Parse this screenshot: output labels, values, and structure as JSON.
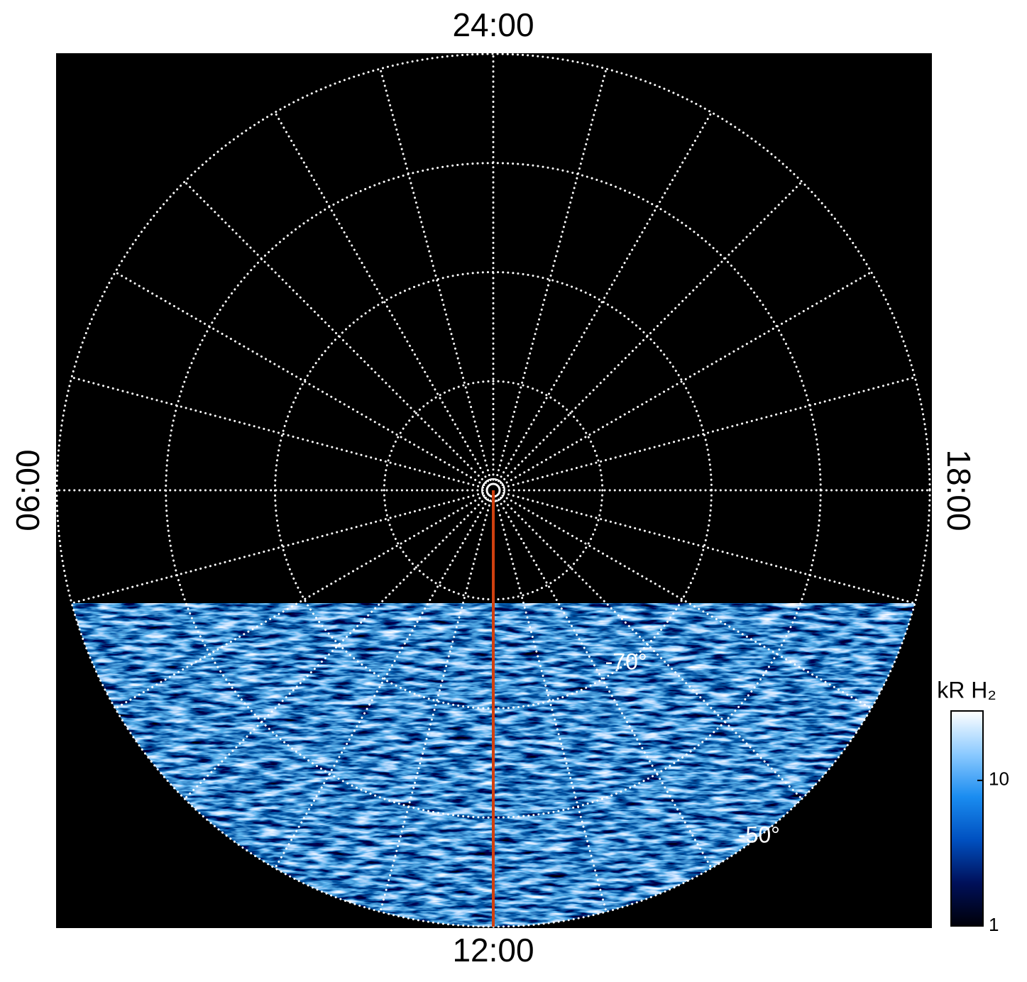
{
  "chart_data": {
    "type": "polar",
    "hour_labels": [
      {
        "value": 24,
        "label": "24:00"
      },
      {
        "value": 6,
        "label": "06:00"
      },
      {
        "value": 18,
        "label": "18:00"
      },
      {
        "value": 12,
        "label": "12:00"
      }
    ],
    "meridian_step_hours": 1,
    "rlim": [
      -90,
      -50
    ],
    "rings": [
      -50,
      -60,
      -70,
      -80
    ],
    "ring_labels": [
      {
        "value": -70,
        "label": "-70°"
      },
      {
        "value": -50,
        "label": "-50°"
      }
    ],
    "highlight_meridian": {
      "value": 12,
      "color": "#d0400f"
    },
    "colorbar": {
      "title": "kR H₂",
      "lim": [
        1,
        30
      ],
      "ticks": [
        1,
        10
      ],
      "log": true,
      "colors": [
        "#000008",
        "#00105a",
        "#0050c0",
        "#1a8cf0",
        "#8ccaff",
        "#ffffff"
      ]
    }
  }
}
